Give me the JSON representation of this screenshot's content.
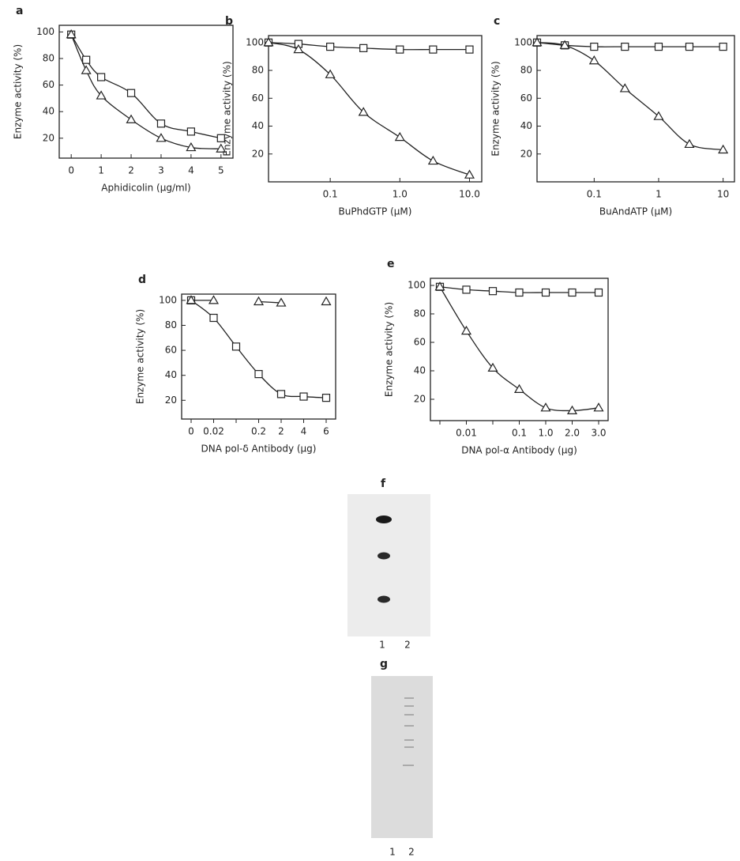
{
  "chart_data": [
    {
      "type": "line",
      "label": "a",
      "x_label": "Aphidicolin (μg/ml)",
      "y_label": "Enzyme activity (%)",
      "x": [
        0,
        0.5,
        1,
        2,
        3,
        4,
        5
      ],
      "xlim": [
        -0.4,
        5.4
      ],
      "xticks": [
        0,
        1,
        2,
        3,
        4,
        5
      ],
      "ylim": [
        5,
        105
      ],
      "yticks": [
        20,
        40,
        60,
        80,
        100
      ],
      "grid": false,
      "series": [
        {
          "marker": "square",
          "color": "#222222",
          "values": [
            98,
            79,
            66,
            54,
            31,
            25,
            20
          ]
        },
        {
          "marker": "triangle",
          "color": "#222222",
          "values": [
            98,
            71,
            52,
            34,
            20,
            13,
            12
          ]
        }
      ]
    },
    {
      "type": "line",
      "label": "b",
      "x_label": "BuPhdGTP (μM)",
      "y_label": "Enzyme activity (%)",
      "xlog": true,
      "x": [
        0.013,
        0.035,
        0.1,
        0.3,
        1,
        3,
        10
      ],
      "xlim": [
        0.013,
        15
      ],
      "xticks": [
        0.1,
        {
          "value": 1,
          "label": "1.0"
        },
        {
          "value": 10,
          "label": "10.0"
        }
      ],
      "ylim": [
        0,
        105
      ],
      "yticks": [
        20,
        40,
        60,
        80,
        100
      ],
      "grid": false,
      "series": [
        {
          "marker": "square",
          "color": "#222222",
          "values": [
            100,
            99,
            97,
            96,
            95,
            95,
            95
          ]
        },
        {
          "marker": "triangle",
          "color": "#222222",
          "values": [
            100,
            95,
            77,
            50,
            32,
            15,
            5
          ]
        }
      ]
    },
    {
      "type": "line",
      "label": "c",
      "x_label": "BuAndATP (μM)",
      "y_label": "Enzyme activity (%)",
      "xlog": true,
      "x": [
        0.013,
        0.035,
        0.1,
        0.3,
        1,
        3,
        10
      ],
      "xlim": [
        0.013,
        15
      ],
      "xticks": [
        0.1,
        1,
        10
      ],
      "ylim": [
        0,
        105
      ],
      "yticks": [
        20,
        40,
        60,
        80,
        100
      ],
      "grid": false,
      "series": [
        {
          "marker": "square",
          "color": "#222222",
          "values": [
            100,
            98,
            97,
            97,
            97,
            97,
            97
          ]
        },
        {
          "marker": "triangle",
          "color": "#222222",
          "values": [
            100,
            98,
            87,
            67,
            47,
            27,
            23
          ]
        }
      ]
    },
    {
      "type": "line",
      "label": "d",
      "x_label": "DNA pol-δ Antibody (μg)",
      "y_label": "Enzyme activity (%)",
      "categories": [
        "0",
        "0.02",
        null,
        "0.2",
        "2",
        "4",
        "6"
      ],
      "ylim": [
        5,
        105
      ],
      "yticks": [
        20,
        40,
        60,
        80,
        100
      ],
      "grid": false,
      "series": [
        {
          "marker": "square",
          "color": "#222222",
          "values": [
            100,
            86,
            63,
            41,
            25,
            23,
            22
          ]
        },
        {
          "marker": "triangle",
          "color": "#222222",
          "values": [
            100,
            100,
            null,
            99,
            98,
            null,
            99
          ]
        }
      ]
    },
    {
      "type": "line",
      "label": "e",
      "x_label": "DNA pol-α Antibody (μg)",
      "y_label": "Enzyme activity (%)",
      "categories": [
        null,
        "0.01",
        null,
        "0.1",
        "1.0",
        "2.0",
        "3.0"
      ],
      "ylim": [
        5,
        105
      ],
      "yticks": [
        20,
        40,
        60,
        80,
        100
      ],
      "grid": false,
      "series": [
        {
          "marker": "square",
          "color": "#222222",
          "values": [
            99,
            97,
            96,
            95,
            95,
            95,
            95
          ]
        },
        {
          "marker": "triangle",
          "color": "#222222",
          "values": [
            99,
            68,
            42,
            27,
            14,
            12,
            14
          ]
        }
      ]
    }
  ],
  "gels": [
    {
      "label": "f",
      "lanes": [
        "1",
        "2"
      ]
    },
    {
      "label": "g",
      "lanes": [
        "1",
        "2"
      ]
    }
  ]
}
